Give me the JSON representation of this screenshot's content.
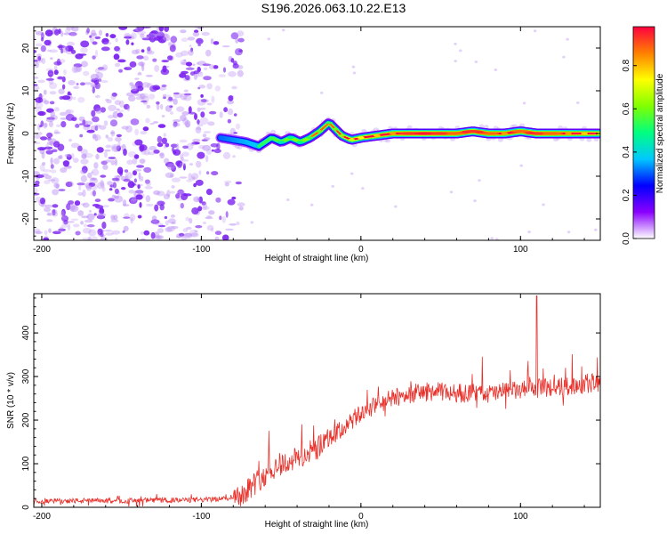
{
  "title": "S196.2026.063.10.22.E13",
  "colors": {
    "snr_line": "#e8302a",
    "axis": "#000000",
    "scatter": "#8a2be2"
  },
  "chart_data": [
    {
      "type": "heatmap",
      "name": "spectrogram",
      "xlabel": "Height of straight line (km)",
      "ylabel": "Frequency (Hz)",
      "xlim": [
        -205,
        150
      ],
      "ylim": [
        -25,
        25
      ],
      "x_ticks": [
        -200,
        -100,
        0,
        100
      ],
      "y_ticks": [
        -20,
        -10,
        0,
        10,
        20
      ],
      "ridge": {
        "description_values": "frequency of peak amplitude vs height",
        "x": [
          -88,
          -80,
          -72,
          -64,
          -56,
          -50,
          -44,
          -38,
          -32,
          -26,
          -20,
          -16,
          -12,
          -6,
          0,
          10,
          20,
          30,
          40,
          50,
          60,
          70,
          80,
          90,
          100,
          110,
          120,
          130,
          140,
          150
        ],
        "y": [
          -1.0,
          -1.5,
          -2.0,
          -3.0,
          -1.0,
          -2.0,
          -1.0,
          -2.0,
          -1.0,
          0.5,
          2.5,
          1.0,
          -0.5,
          -1.5,
          -1.0,
          -0.5,
          0.0,
          0.0,
          0.0,
          0.0,
          0.0,
          0.5,
          0.0,
          0.0,
          0.5,
          0.0,
          0.0,
          0.0,
          0.0,
          0.0
        ],
        "amplitude": [
          0.15,
          0.2,
          0.25,
          0.3,
          0.35,
          0.4,
          0.45,
          0.45,
          0.5,
          0.55,
          0.5,
          0.55,
          0.6,
          0.65,
          0.7,
          0.75,
          0.8,
          0.9,
          0.95,
          0.9,
          0.85,
          0.9,
          0.85,
          0.8,
          0.85,
          0.9,
          0.85,
          0.8,
          0.75,
          0.7
        ]
      },
      "noise_region_x": [
        -205,
        -85
      ],
      "noise_amplitude": 0.05
    },
    {
      "type": "colorbar",
      "label": "Normalized spectral amplitude",
      "range": [
        0,
        0.98
      ],
      "ticks": [
        0.0,
        0.2,
        0.4,
        0.6,
        0.8
      ],
      "tick_labels": [
        "0.0",
        "0.2",
        "0.4",
        "0.6",
        "0.8"
      ],
      "colormap": [
        "#ffffff",
        "#8a00ff",
        "#0000ff",
        "#00c8ff",
        "#00ff80",
        "#80ff00",
        "#ffff00",
        "#ff8000",
        "#ff0040"
      ]
    },
    {
      "type": "line",
      "name": "snr",
      "xlabel": "Height of straight line (km)",
      "ylabel": "SNR (10 * v/v)",
      "xlim": [
        -205,
        150
      ],
      "ylim": [
        0,
        490
      ],
      "x_ticks": [
        -200,
        -100,
        0,
        100
      ],
      "y_ticks": [
        0,
        100,
        200,
        300,
        400
      ],
      "trend": {
        "x": [
          -205,
          -150,
          -100,
          -85,
          -75,
          -65,
          -55,
          -45,
          -35,
          -25,
          -15,
          -5,
          0,
          10,
          20,
          30,
          40,
          50,
          60,
          70,
          80,
          90,
          100,
          110,
          120,
          130,
          140,
          150
        ],
        "y": [
          15,
          15,
          17,
          20,
          30,
          60,
          90,
          105,
          120,
          140,
          170,
          200,
          215,
          235,
          250,
          260,
          265,
          265,
          262,
          262,
          260,
          265,
          268,
          272,
          275,
          278,
          282,
          288
        ]
      },
      "spike": {
        "x": 110,
        "y": 485
      }
    }
  ]
}
